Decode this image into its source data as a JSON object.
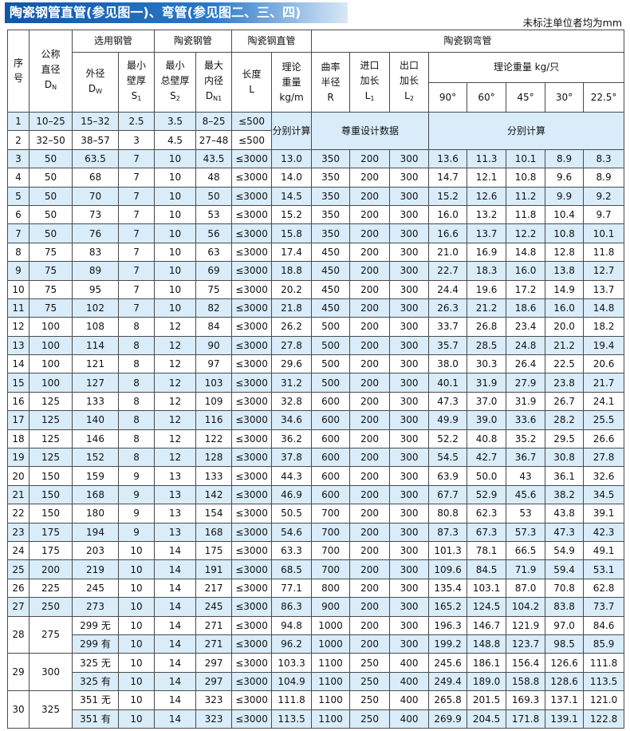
{
  "header": {
    "title": "陶瓷钢管直管(参见图一)、弯管(参见图二、三、四)",
    "note": "未标注单位者均为mm"
  },
  "table": {
    "groups": [
      {
        "lines": [
          "序",
          "号"
        ]
      },
      {
        "lines": [
          "公称",
          "直径"
        ],
        "symbol": "D",
        "sub": "N"
      },
      {
        "lines": [
          "选用钢管"
        ]
      },
      {
        "lines": [
          "陶瓷钢管"
        ]
      },
      {
        "lines": [
          "陶瓷钢直管"
        ]
      },
      {
        "lines": [
          "陶瓷钢弯管"
        ]
      }
    ],
    "subheaders": [
      {
        "lines": [
          "外径"
        ],
        "symbol": "D",
        "sub": "W"
      },
      {
        "lines": [
          "最小",
          "壁厚"
        ],
        "symbol": "S",
        "sub": "1"
      },
      {
        "lines": [
          "最小",
          "总壁厚"
        ],
        "symbol": "S",
        "sub": "2"
      },
      {
        "lines": [
          "最大",
          "内径"
        ],
        "symbol": "D",
        "sub": "N1"
      },
      {
        "lines": [
          "长度"
        ],
        "symbol": "L"
      },
      {
        "lines": [
          "理论",
          "重量",
          "kg/m"
        ]
      },
      {
        "lines": [
          "曲率",
          "半径"
        ],
        "symbol": "R"
      },
      {
        "lines": [
          "进口",
          "加长"
        ],
        "symbol": "L",
        "sub": "1"
      },
      {
        "lines": [
          "出口",
          "加长"
        ],
        "symbol": "L",
        "sub": "2"
      },
      {
        "lines": [
          "理论重量 kg/只"
        ]
      }
    ],
    "angles": [
      "90°",
      "60°",
      "45°",
      "30°",
      "22.5°"
    ],
    "rows": [
      [
        "1",
        "10–25",
        "15–32",
        "2.5",
        "3.5",
        "8–25",
        "≤500",
        "分别计算",
        "尊重设计数据",
        "分别计算"
      ],
      [
        "2",
        "32–50",
        "38–57",
        "3",
        "4.5",
        "27–48",
        "≤500"
      ],
      [
        "3",
        "50",
        "63.5",
        "7",
        "10",
        "43.5",
        "≤3000",
        "13.0",
        "350",
        "200",
        "300",
        "13.6",
        "11.3",
        "10.1",
        "8.9",
        "8.3"
      ],
      [
        "4",
        "50",
        "68",
        "7",
        "10",
        "48",
        "≤3000",
        "14.0",
        "350",
        "200",
        "300",
        "14.7",
        "12.1",
        "10.8",
        "9.6",
        "8.9"
      ],
      [
        "5",
        "50",
        "70",
        "7",
        "10",
        "50",
        "≤3000",
        "14.5",
        "350",
        "200",
        "300",
        "15.2",
        "12.6",
        "11.2",
        "9.9",
        "9.2"
      ],
      [
        "6",
        "50",
        "73",
        "7",
        "10",
        "53",
        "≤3000",
        "15.2",
        "350",
        "200",
        "300",
        "16.0",
        "13.2",
        "11.8",
        "10.4",
        "9.7"
      ],
      [
        "7",
        "50",
        "76",
        "7",
        "10",
        "56",
        "≤3000",
        "15.8",
        "350",
        "200",
        "300",
        "16.6",
        "13.7",
        "12.2",
        "10.8",
        "10.1"
      ],
      [
        "8",
        "75",
        "83",
        "7",
        "10",
        "63",
        "≤3000",
        "17.4",
        "450",
        "200",
        "300",
        "21.0",
        "16.9",
        "14.8",
        "12.8",
        "11.8"
      ],
      [
        "9",
        "75",
        "89",
        "7",
        "10",
        "69",
        "≤3000",
        "18.8",
        "450",
        "200",
        "300",
        "22.7",
        "18.3",
        "16.0",
        "13.8",
        "12.7"
      ],
      [
        "10",
        "75",
        "95",
        "7",
        "10",
        "75",
        "≤3000",
        "20.2",
        "450",
        "200",
        "300",
        "24.4",
        "19.6",
        "17.2",
        "14.9",
        "13.7"
      ],
      [
        "11",
        "75",
        "102",
        "7",
        "10",
        "82",
        "≤3000",
        "21.8",
        "450",
        "200",
        "300",
        "26.3",
        "21.2",
        "18.6",
        "16.0",
        "14.8"
      ],
      [
        "12",
        "100",
        "108",
        "8",
        "12",
        "84",
        "≤3000",
        "26.2",
        "500",
        "200",
        "300",
        "33.7",
        "26.8",
        "23.4",
        "20.0",
        "18.2"
      ],
      [
        "13",
        "100",
        "114",
        "8",
        "12",
        "90",
        "≤3000",
        "27.8",
        "500",
        "200",
        "300",
        "35.7",
        "28.5",
        "24.8",
        "21.2",
        "19.4"
      ],
      [
        "14",
        "100",
        "121",
        "8",
        "12",
        "97",
        "≤3000",
        "29.6",
        "500",
        "200",
        "300",
        "38.0",
        "30.3",
        "26.4",
        "22.5",
        "20.6"
      ],
      [
        "15",
        "100",
        "127",
        "8",
        "12",
        "103",
        "≤3000",
        "31.2",
        "500",
        "200",
        "300",
        "40.1",
        "31.9",
        "27.9",
        "23.8",
        "21.7"
      ],
      [
        "16",
        "125",
        "133",
        "8",
        "12",
        "109",
        "≤3000",
        "32.8",
        "600",
        "200",
        "300",
        "47.3",
        "37.0",
        "31.9",
        "26.7",
        "24.1"
      ],
      [
        "17",
        "125",
        "140",
        "8",
        "12",
        "116",
        "≤3000",
        "34.6",
        "600",
        "200",
        "300",
        "49.9",
        "39.0",
        "33.6",
        "28.2",
        "25.5"
      ],
      [
        "18",
        "125",
        "146",
        "8",
        "12",
        "122",
        "≤3000",
        "36.2",
        "600",
        "200",
        "300",
        "52.2",
        "40.8",
        "35.2",
        "29.5",
        "26.6"
      ],
      [
        "19",
        "125",
        "152",
        "8",
        "12",
        "128",
        "≤3000",
        "37.8",
        "600",
        "200",
        "300",
        "54.5",
        "42.7",
        "36.7",
        "30.8",
        "27.8"
      ],
      [
        "20",
        "150",
        "159",
        "9",
        "13",
        "133",
        "≤3000",
        "44.3",
        "600",
        "200",
        "300",
        "63.9",
        "50.0",
        "43",
        "36.1",
        "32.6"
      ],
      [
        "21",
        "150",
        "168",
        "9",
        "13",
        "142",
        "≤3000",
        "46.9",
        "600",
        "200",
        "300",
        "67.7",
        "52.9",
        "45.6",
        "38.2",
        "34.5"
      ],
      [
        "22",
        "150",
        "180",
        "9",
        "13",
        "154",
        "≤3000",
        "50.5",
        "700",
        "200",
        "300",
        "80.8",
        "62.3",
        "53",
        "43.8",
        "39.1"
      ],
      [
        "23",
        "175",
        "194",
        "9",
        "13",
        "168",
        "≤3000",
        "54.6",
        "700",
        "200",
        "300",
        "87.3",
        "67.3",
        "57.3",
        "47.3",
        "42.3"
      ],
      [
        "24",
        "175",
        "203",
        "10",
        "14",
        "175",
        "≤3000",
        "63.3",
        "700",
        "200",
        "300",
        "101.3",
        "78.1",
        "66.5",
        "54.9",
        "49.1"
      ],
      [
        "25",
        "200",
        "219",
        "10",
        "14",
        "191",
        "≤3000",
        "68.5",
        "700",
        "200",
        "300",
        "109.6",
        "84.5",
        "71.9",
        "59.4",
        "53.1"
      ],
      [
        "26",
        "225",
        "245",
        "10",
        "14",
        "217",
        "≤3000",
        "77.1",
        "800",
        "200",
        "300",
        "135.4",
        "103.1",
        "87.0",
        "70.8",
        "62.8"
      ],
      [
        "27",
        "250",
        "273",
        "10",
        "14",
        "245",
        "≤3000",
        "86.3",
        "900",
        "200",
        "300",
        "165.2",
        "124.5",
        "104.2",
        "83.8",
        "73.7"
      ],
      [
        "28",
        "275",
        "299 无",
        "10",
        "14",
        "271",
        "≤3000",
        "94.8",
        "1000",
        "200",
        "300",
        "196.3",
        "146.7",
        "121.9",
        "97.0",
        "84.6"
      ],
      [
        "299 有",
        "10",
        "14",
        "271",
        "≤3000",
        "96.2",
        "1000",
        "200",
        "300",
        "199.2",
        "148.8",
        "123.7",
        "98.5",
        "85.9"
      ],
      [
        "29",
        "300",
        "325 无",
        "10",
        "14",
        "297",
        "≤3000",
        "103.3",
        "1100",
        "250",
        "400",
        "245.6",
        "186.1",
        "156.4",
        "126.6",
        "111.8"
      ],
      [
        "325 有",
        "10",
        "14",
        "297",
        "≤3000",
        "104.9",
        "1100",
        "250",
        "400",
        "249.4",
        "189.0",
        "158.8",
        "128.6",
        "113.5"
      ],
      [
        "30",
        "325",
        "351 无",
        "10",
        "14",
        "323",
        "≤3000",
        "111.8",
        "1100",
        "250",
        "400",
        "265.8",
        "201.5",
        "169.3",
        "137.1",
        "121.0"
      ],
      [
        "351 有",
        "10",
        "14",
        "323",
        "≤3000",
        "113.5",
        "1100",
        "250",
        "400",
        "269.9",
        "204.5",
        "171.8",
        "139.1",
        "122.8"
      ]
    ]
  }
}
